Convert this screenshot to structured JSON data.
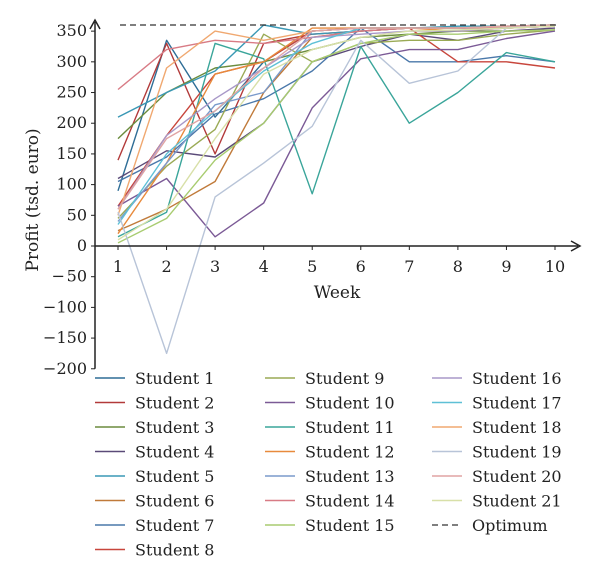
{
  "chart_data": {
    "type": "line",
    "title": "",
    "xlabel": "Week",
    "ylabel": "Profit (tsd. euro)",
    "xlim": [
      1,
      10
    ],
    "ylim": [
      -200,
      360
    ],
    "x_ticks": [
      "1",
      "2",
      "3",
      "4",
      "5",
      "6",
      "7",
      "8",
      "9",
      "10"
    ],
    "y_ticks": [
      "350",
      "300",
      "250",
      "200",
      "150",
      "100",
      "50",
      "0",
      "− 50",
      "−100",
      "−150",
      "−200"
    ],
    "grid": false,
    "legend_position": "bottom",
    "x": [
      1,
      2,
      3,
      4,
      5,
      6,
      7,
      8,
      9,
      10
    ],
    "optimum": 360,
    "series": [
      {
        "name": "Student 1",
        "color": "#2e6d96",
        "values": [
          90,
          335,
          210,
          300,
          350,
          355,
          355,
          355,
          358,
          360
        ]
      },
      {
        "name": "Student 2",
        "color": "#b23a3a",
        "values": [
          140,
          330,
          150,
          330,
          345,
          350,
          355,
          355,
          355,
          358
        ]
      },
      {
        "name": "Student 3",
        "color": "#6b8c3e",
        "values": [
          175,
          250,
          290,
          300,
          320,
          340,
          345,
          350,
          350,
          352
        ]
      },
      {
        "name": "Student 4",
        "color": "#5a4a78",
        "values": [
          110,
          155,
          145,
          200,
          300,
          325,
          345,
          335,
          350,
          355
        ]
      },
      {
        "name": "Student 5",
        "color": "#3a98b5",
        "values": [
          210,
          250,
          285,
          360,
          345,
          350,
          355,
          358,
          358,
          360
        ]
      },
      {
        "name": "Student 6",
        "color": "#c07a3a",
        "values": [
          25,
          60,
          105,
          250,
          340,
          350,
          355,
          355,
          358,
          360
        ]
      },
      {
        "name": "Student 7",
        "color": "#4a78aa",
        "values": [
          105,
          145,
          215,
          240,
          285,
          355,
          300,
          300,
          310,
          300
        ]
      },
      {
        "name": "Student 8",
        "color": "#c8463c",
        "values": [
          65,
          180,
          280,
          300,
          350,
          355,
          355,
          300,
          300,
          290
        ]
      },
      {
        "name": "Student 9",
        "color": "#9aaa55",
        "values": [
          45,
          130,
          190,
          345,
          300,
          330,
          335,
          335,
          345,
          352
        ]
      },
      {
        "name": "Student 10",
        "color": "#7b5a96",
        "values": [
          65,
          110,
          15,
          70,
          225,
          305,
          320,
          320,
          338,
          350
        ]
      },
      {
        "name": "Student 11",
        "color": "#3aa59a",
        "values": [
          15,
          55,
          330,
          305,
          85,
          325,
          200,
          250,
          315,
          300
        ]
      },
      {
        "name": "Student 12",
        "color": "#e88a3c",
        "values": [
          20,
          135,
          280,
          300,
          355,
          355,
          355,
          350,
          355,
          358
        ]
      },
      {
        "name": "Student 13",
        "color": "#7a9acb",
        "values": [
          40,
          135,
          230,
          250,
          350,
          355,
          355,
          355,
          355,
          360
        ]
      },
      {
        "name": "Student 14",
        "color": "#d87b85",
        "values": [
          255,
          320,
          335,
          330,
          340,
          350,
          355,
          355,
          355,
          358
        ]
      },
      {
        "name": "Student 15",
        "color": "#a8cc70",
        "values": [
          5,
          45,
          140,
          200,
          300,
          330,
          345,
          345,
          350,
          352
        ]
      },
      {
        "name": "Student 16",
        "color": "#a898c8",
        "values": [
          60,
          180,
          240,
          290,
          340,
          345,
          350,
          350,
          355,
          358
        ]
      },
      {
        "name": "Student 17",
        "color": "#5ec0d6",
        "values": [
          35,
          150,
          220,
          285,
          330,
          355,
          355,
          355,
          358,
          360
        ]
      },
      {
        "name": "Student 18",
        "color": "#f0a870",
        "values": [
          50,
          290,
          350,
          335,
          350,
          355,
          355,
          355,
          358,
          360
        ]
      },
      {
        "name": "Student 19",
        "color": "#b8c4d8",
        "values": [
          55,
          -175,
          80,
          135,
          195,
          335,
          265,
          285,
          355,
          360
        ]
      },
      {
        "name": "Student 20",
        "color": "#e0a4a4",
        "values": [
          60,
          175,
          220,
          290,
          350,
          355,
          355,
          355,
          358,
          360
        ]
      },
      {
        "name": "Student 21",
        "color": "#d8e0a8",
        "values": [
          10,
          60,
          175,
          280,
          320,
          340,
          350,
          352,
          355,
          358
        ]
      },
      {
        "name": "Optimum",
        "color": "#333333",
        "dashed": true,
        "values": [
          360,
          360,
          360,
          360,
          360,
          360,
          360,
          360,
          360,
          360
        ]
      }
    ]
  }
}
